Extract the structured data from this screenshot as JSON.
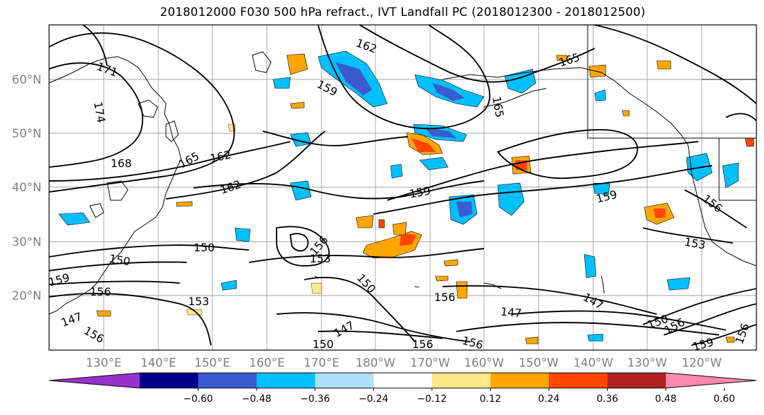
{
  "title": "2018012000 F030 500 hPa refract., IVT Landfall PC (2018012300 - 2018012500)",
  "lat_labels": [
    "60°N",
    "50°N",
    "40°N",
    "30°N",
    "20°N"
  ],
  "lon_labels": [
    "130°E",
    "140°E",
    "150°E",
    "160°E",
    "170°E",
    "180°W",
    "170°W",
    "160°W",
    "150°W",
    "140°W",
    "130°W",
    "120°W"
  ],
  "contour_labels": [
    "171",
    "174",
    "168",
    "165",
    "162",
    "162",
    "162",
    "159",
    "159",
    "165",
    "165",
    "159",
    "159",
    "156",
    "153",
    "150",
    "150",
    "159",
    "156",
    "153",
    "156",
    "153",
    "150",
    "156",
    "147",
    "147",
    "147",
    "147",
    "150",
    "156",
    "156",
    "156",
    "150",
    "156",
    "159",
    "156",
    "147"
  ],
  "colorbar": {
    "ticks": [
      "−0.60",
      "−0.48",
      "−0.36",
      "−0.24",
      "−0.12",
      "0.12",
      "0.24",
      "0.36",
      "0.48",
      "0.60"
    ],
    "colors": [
      "#9932cc",
      "#00008b",
      "#3a5bd0",
      "#00bfff",
      "#afe0fb",
      "#ffffff",
      "#ffe98a",
      "#ffa500",
      "#ff4500",
      "#b22222",
      "#ff88b0"
    ]
  },
  "fill_colors": {
    "neg1": "#00bfff",
    "neg2": "#3a5bd0",
    "neg_light": "#afe0fb",
    "pos1": "#ffe98a",
    "pos2": "#ffa500",
    "pos3": "#ff4500",
    "pos4": "#b22222"
  }
}
